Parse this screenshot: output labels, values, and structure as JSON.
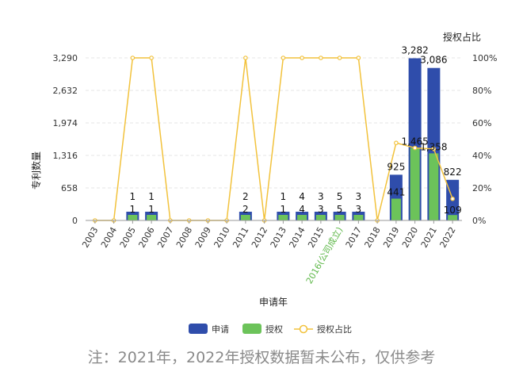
{
  "chart_data": {
    "type": "bar",
    "categories": [
      "2003",
      "2004",
      "2005",
      "2006",
      "2007",
      "2008",
      "2009",
      "2010",
      "2011",
      "2012",
      "2013",
      "2014",
      "2015",
      "2016(公司成立)",
      "2017",
      "2018",
      "2019",
      "2020",
      "2021",
      "2022"
    ],
    "highlight_category": "2016(公司成立)",
    "series": [
      {
        "name": "申请",
        "type": "bar",
        "values": [
          0,
          0,
          1,
          1,
          0,
          0,
          0,
          0,
          2,
          0,
          1,
          4,
          3,
          5,
          3,
          0,
          925,
          3282,
          3086,
          822
        ]
      },
      {
        "name": "授权",
        "type": "bar",
        "values": [
          0,
          0,
          1,
          1,
          0,
          0,
          0,
          0,
          2,
          0,
          1,
          4,
          3,
          5,
          3,
          0,
          441,
          1465,
          1358,
          109
        ]
      },
      {
        "name": "授权占比",
        "type": "line",
        "axis": "right",
        "values": [
          0,
          0,
          100,
          100,
          0,
          0,
          0,
          0,
          100,
          0,
          100,
          100,
          100,
          100,
          100,
          0,
          47.7,
          44.6,
          44.0,
          13.3
        ]
      }
    ],
    "data_labels": {
      "申请": [
        "",
        "",
        "1",
        "1",
        "",
        "",
        "",
        "",
        "2",
        "",
        "1",
        "4",
        "3",
        "5",
        "3",
        "",
        "925",
        "3,282",
        "3,086",
        "822"
      ],
      "授权": [
        "",
        "",
        "1",
        "1",
        "",
        "",
        "",
        "",
        "2",
        "",
        "1",
        "4",
        "3",
        "5",
        "3",
        "",
        "441",
        "1,465",
        "1,358",
        "109"
      ]
    },
    "xlabel": "申请年",
    "ylabel": "专利数量",
    "ylabel_right": "授权占比",
    "ylim": [
      0,
      3290
    ],
    "yticks": [
      "0",
      "658",
      "1,316",
      "1,974",
      "2,632",
      "3,290"
    ],
    "ylim_right": [
      0,
      100
    ],
    "yticks_right": [
      "0%",
      "20%",
      "40%",
      "60%",
      "80%",
      "100%"
    ],
    "grid": true,
    "legend_position": "bottom"
  },
  "colors": {
    "apply": "#2f4dab",
    "grant": "#6cc35a",
    "ratio": "#f2c23c",
    "highlight_tick": "#5fb84a",
    "grid": "#e6e6e6"
  },
  "legend": {
    "apply": "申请",
    "grant": "授权",
    "ratio": "授权占比"
  },
  "note": "注：2021年，2022年授权数据暂未公布，仅供参考"
}
